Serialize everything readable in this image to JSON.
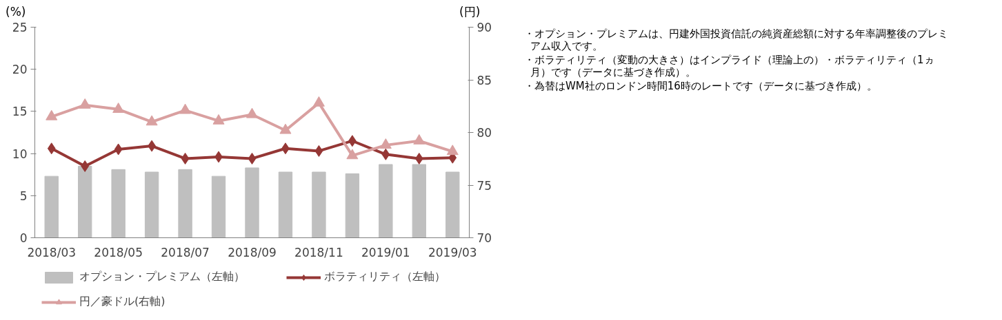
{
  "chart_data": {
    "type": "bar",
    "ylabel": "(%)",
    "y2label": "(円)",
    "categories": [
      "2018/03",
      null,
      "2018/05",
      null,
      "2018/07",
      null,
      "2018/09",
      null,
      "2018/11",
      null,
      "2019/01",
      null,
      "2019/03"
    ],
    "series": [
      {
        "name": "オプション・プレミアム（左軸）",
        "color": "#bfbfbf",
        "values": [
          7.3,
          8.5,
          8.1,
          7.8,
          8.1,
          7.3,
          8.3,
          7.8,
          7.8,
          7.6,
          8.7,
          8.7,
          7.8
        ]
      },
      {
        "name": "ボラティリティ（左軸）",
        "type": "line",
        "marker": "diamond",
        "color": "#953735",
        "values": [
          10.6,
          8.5,
          10.5,
          10.9,
          9.4,
          9.6,
          9.4,
          10.6,
          10.3,
          11.5,
          9.9,
          9.4,
          9.5
        ]
      },
      {
        "name": "円／豪ドル(右軸)",
        "type": "line",
        "marker": "triangle",
        "axis": "y2",
        "color": "#d9a0a0",
        "values": [
          81.5,
          82.6,
          82.2,
          81.0,
          82.1,
          81.1,
          81.7,
          80.2,
          82.8,
          77.8,
          78.8,
          79.2,
          78.2
        ]
      }
    ],
    "ylim": [
      0,
      25
    ],
    "yticks": [
      0,
      5,
      10,
      15,
      20,
      25
    ],
    "y2lim": [
      70,
      90
    ],
    "y2ticks": [
      70,
      75,
      80,
      85,
      90
    ],
    "grid": false,
    "legend": "bottom",
    "annotations": [
      "・オプション・プレミアムは、円建外国投資信託の純資産総額に対する年率調整後のプレミアム収入です。",
      "・ボラティリティ（変動の大きさ）はインプライド（理論上の）・ボラティリティ（1ヵ月）です（データに基づき作成）。",
      "・為替はWM社のロンドン時間16時のレートです（データに基づき作成）。"
    ]
  }
}
